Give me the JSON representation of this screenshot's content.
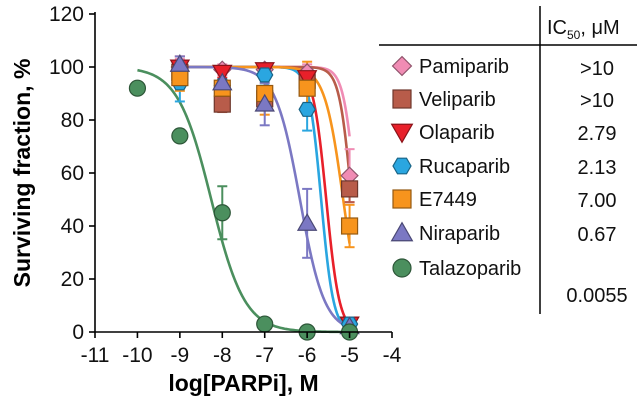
{
  "chart_data": {
    "type": "scatter",
    "title": "",
    "xlabel": "log[PARPi], M",
    "ylabel": "Surviving fraction, %",
    "xlim": [
      -11,
      -4
    ],
    "ylim": [
      0,
      120
    ],
    "xticks": [
      "-11",
      "-10",
      "-9",
      "-8",
      "-7",
      "-6",
      "-5",
      "-4"
    ],
    "yticks": [
      "0",
      "20",
      "40",
      "60",
      "80",
      "100",
      "120"
    ],
    "ic50_header": "IC",
    "ic50_sub": "50",
    "ic50_unit": ", μM",
    "series": [
      {
        "name": "Pamiparib",
        "ic50": ">10",
        "color": "#f08cb4",
        "marker": "diamond",
        "curve_ic50_log": -4.85,
        "curve_hill": 3.0,
        "x": [
          -9,
          -8,
          -7,
          -6,
          -5
        ],
        "y": [
          100,
          99,
          99,
          98,
          59
        ],
        "err": [
          3,
          2,
          2,
          3,
          10
        ]
      },
      {
        "name": "Veliparib",
        "ic50": ">10",
        "color": "#b85c4a",
        "marker": "square",
        "curve_ic50_log": -4.95,
        "curve_hill": 3.0,
        "x": [
          -9,
          -8,
          -7,
          -6,
          -5
        ],
        "y": [
          98,
          86,
          88,
          95,
          54
        ],
        "err": [
          4,
          3,
          3,
          3,
          5
        ]
      },
      {
        "name": "Olaparib",
        "ic50": "2.79",
        "color": "#e8202a",
        "marker": "triangle-down",
        "curve_ic50_log": -5.55,
        "curve_hill": 2.8,
        "x": [
          -9,
          -8,
          -7,
          -6,
          -5
        ],
        "y": [
          100,
          98,
          99,
          96,
          3
        ],
        "err": [
          4,
          2,
          2,
          3,
          2
        ]
      },
      {
        "name": "Rucaparib",
        "ic50": "2.13",
        "color": "#2aa6e0",
        "marker": "hexagon",
        "curve_ic50_log": -5.67,
        "curve_hill": 3.0,
        "x": [
          -9,
          -8,
          -7,
          -6,
          -5
        ],
        "y": [
          94,
          93,
          97,
          84,
          3
        ],
        "err": [
          7,
          5,
          4,
          8,
          2
        ]
      },
      {
        "name": "E7449",
        "ic50": "7.00",
        "color": "#f7941d",
        "marker": "square",
        "curve_ic50_log": -5.15,
        "curve_hill": 2.0,
        "x": [
          -9,
          -8,
          -7,
          -6,
          -5
        ],
        "y": [
          96,
          92,
          90,
          92,
          40
        ],
        "err": [
          5,
          6,
          8,
          10,
          8
        ]
      },
      {
        "name": "Niraparib",
        "ic50": "0.67",
        "color": "#7b78c3",
        "marker": "triangle-up",
        "curve_ic50_log": -6.17,
        "curve_hill": 1.5,
        "x": [
          -9,
          -8,
          -7,
          -6,
          -5
        ],
        "y": [
          101,
          94,
          86,
          41,
          2
        ],
        "err": [
          3,
          5,
          8,
          13,
          2
        ]
      },
      {
        "name": "Talazoparib",
        "ic50": "0.0055",
        "color": "#4b8f5e",
        "marker": "circle",
        "curve_ic50_log": -8.26,
        "curve_hill": 1.1,
        "x": [
          -10,
          -9,
          -8,
          -7,
          -6,
          -5
        ],
        "y": [
          92,
          74,
          45,
          3,
          0,
          0
        ],
        "err": [
          0,
          0,
          10,
          0,
          0,
          0
        ]
      }
    ]
  }
}
